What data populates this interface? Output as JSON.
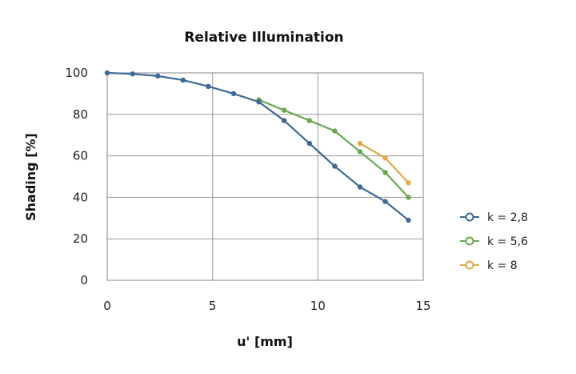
{
  "chart_data": {
    "type": "line",
    "title": "Relative Illumination",
    "xlabel": "u' [mm]",
    "ylabel": "Shading [%]",
    "xlim": [
      0,
      15
    ],
    "ylim": [
      0,
      100
    ],
    "xticks": [
      "0",
      "5",
      "10",
      "15"
    ],
    "yticks": [
      "0",
      "20",
      "40",
      "60",
      "80",
      "100"
    ],
    "grid": true,
    "legend_position": "right",
    "series": [
      {
        "name": "k = 2,8",
        "color": "#3d6a96",
        "x": [
          0,
          1.2,
          2.4,
          3.6,
          4.8,
          6.0,
          7.2,
          8.4,
          9.6,
          10.8,
          12.0,
          13.2,
          14.3
        ],
        "y": [
          100,
          99.5,
          98.5,
          96.5,
          93.5,
          90,
          86,
          77,
          66,
          55,
          45,
          38,
          29
        ]
      },
      {
        "name": "k = 5,6",
        "color": "#6aa84f",
        "x": [
          7.2,
          8.4,
          9.6,
          10.8,
          12.0,
          13.2,
          14.3
        ],
        "y": [
          87,
          82,
          77,
          72,
          62,
          52,
          40
        ]
      },
      {
        "name": "k = 8",
        "color": "#e0a94a",
        "x": [
          12.0,
          13.2,
          14.3
        ],
        "y": [
          66,
          59,
          47
        ]
      }
    ]
  }
}
